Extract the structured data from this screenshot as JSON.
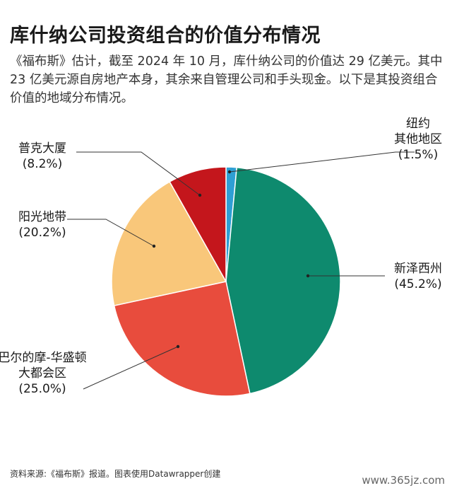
{
  "header": {
    "title": "库什纳公司投资组合的价值分布情况",
    "subtitle": "《福布斯》估计，截至 2024 年 10 月，库什纳公司的价值达 29 亿美元。其中 23 亿美元源自房地产本身，其余来自管理公司和手头现金。以下是其投资组合价值的地域分布情况。"
  },
  "chart_data": {
    "type": "pie",
    "unit": "%",
    "slices": [
      {
        "name": "纽约其他地区",
        "label_lines": [
          "纽约",
          "其他地区"
        ],
        "value_label": "(1.5%)",
        "value": 1.5,
        "color": "#2e9fd4"
      },
      {
        "name": "新泽西州",
        "label_lines": [
          "新泽西州"
        ],
        "value_label": "(45.2%)",
        "value": 45.2,
        "color": "#0e8a6e"
      },
      {
        "name": "巴尔的摩-华盛顿大都会区",
        "label_lines": [
          "巴尔的摩-华盛顿",
          "大都会区"
        ],
        "value_label": "(25.0%)",
        "value": 25.0,
        "color": "#e84c3d"
      },
      {
        "name": "阳光地带",
        "label_lines": [
          "阳光地带"
        ],
        "value_label": "(20.2%)",
        "value": 20.2,
        "color": "#f9c77a"
      },
      {
        "name": "普克大厦",
        "label_lines": [
          "普克大厦"
        ],
        "value_label": "(8.2%)",
        "value": 8.2,
        "color": "#c4161c"
      }
    ]
  },
  "footer": {
    "source": "资料来源:《福布斯》报道。图表使用Datawrapper创建",
    "watermark": "www.365jz.com"
  }
}
